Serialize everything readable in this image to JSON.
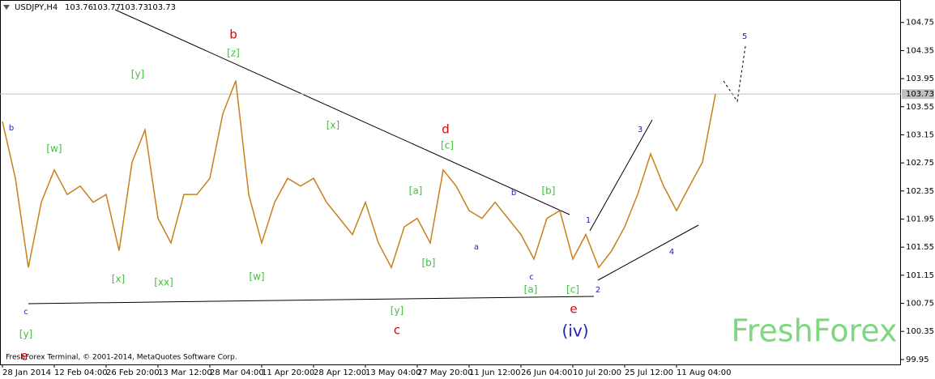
{
  "chart_data": {
    "type": "line",
    "symbol": "USDJPY,H4",
    "ohlc": [
      103.76,
      103.77,
      103.73,
      103.73
    ],
    "current_price": 103.73,
    "copyright": "FreshForex Terminal, © 2001-2014, MetaQuotes Software Corp.",
    "watermark": "FreshForex",
    "x_labels": [
      "28 Jan 2014",
      "12 Feb 04:00",
      "26 Feb 20:00",
      "13 Mar 12:00",
      "28 Mar 04:00",
      "11 Apr 20:00",
      "28 Apr 12:00",
      "13 May 04:00",
      "27 May 20:00",
      "11 Jun 12:00",
      "26 Jun 04:00",
      "10 Jul 20:00",
      "25 Jul 12:00",
      "11 Aug 04:00"
    ],
    "series": [
      {
        "name": "USDJPY",
        "color": "#c8801a",
        "values": [
          103.34,
          102.53,
          101.26,
          102.19,
          102.65,
          102.3,
          102.42,
          102.19,
          102.3,
          101.5,
          102.76,
          103.22,
          101.96,
          101.61,
          102.3,
          102.3,
          102.53,
          103.45,
          103.92,
          102.3,
          101.61,
          102.19,
          102.53,
          102.42,
          102.53,
          102.19,
          101.96,
          101.73,
          102.19,
          101.61,
          101.26,
          101.84,
          101.96,
          101.61,
          102.65,
          102.42,
          102.07,
          101.96,
          102.19,
          101.96,
          101.73,
          101.38,
          101.96,
          102.07,
          101.38,
          101.73,
          101.26,
          101.5,
          101.84,
          102.3,
          102.88,
          102.42,
          102.07,
          102.42,
          102.76,
          103.73
        ]
      }
    ],
    "ylim": [
      99.88,
      105.07
    ],
    "yticks": [
      {
        "value": 99.95,
        "label": "99.95"
      },
      {
        "value": 100.35,
        "label": "100.35"
      },
      {
        "value": 100.75,
        "label": "100.75"
      },
      {
        "value": 101.15,
        "label": "101.15"
      },
      {
        "value": 101.55,
        "label": "101.55"
      },
      {
        "value": 101.95,
        "label": "101.95"
      },
      {
        "value": 102.35,
        "label": "102.35"
      },
      {
        "value": 102.75,
        "label": "102.75"
      },
      {
        "value": 103.15,
        "label": "103.15"
      },
      {
        "value": 103.55,
        "label": "103.55"
      },
      {
        "value": 103.95,
        "label": "103.95"
      },
      {
        "value": 104.35,
        "label": "104.35"
      },
      {
        "value": 104.75,
        "label": "104.75"
      }
    ],
    "annotations": [
      {
        "text": "b",
        "color": "blue"
      },
      {
        "text": "b",
        "color": "red"
      },
      {
        "text": "[z]",
        "color": "green"
      },
      {
        "text": "[y]",
        "color": "green"
      },
      {
        "text": "[w]",
        "color": "green"
      },
      {
        "text": "[x]",
        "color": "green"
      },
      {
        "text": "d",
        "color": "red"
      },
      {
        "text": "[c]",
        "color": "green"
      },
      {
        "text": "[a]",
        "color": "green"
      },
      {
        "text": "b",
        "color": "blue"
      },
      {
        "text": "[b]",
        "color": "green"
      },
      {
        "text": "[b]",
        "color": "green"
      },
      {
        "text": "a",
        "color": "blue"
      },
      {
        "text": "c",
        "color": "blue"
      },
      {
        "text": "[a]",
        "color": "green"
      },
      {
        "text": "[c]",
        "color": "green"
      },
      {
        "text": "e",
        "color": "red"
      },
      {
        "text": "(iv)",
        "color": "blue"
      },
      {
        "text": "[y]",
        "color": "green"
      },
      {
        "text": "c",
        "color": "red"
      },
      {
        "text": "[x]",
        "color": "green"
      },
      {
        "text": "[xx]",
        "color": "green"
      },
      {
        "text": "[w]",
        "color": "green"
      },
      {
        "text": "c",
        "color": "blue"
      },
      {
        "text": "[y]",
        "color": "green"
      },
      {
        "text": "e",
        "color": "red"
      },
      {
        "text": "1",
        "color": "blue"
      },
      {
        "text": "2",
        "color": "blue"
      },
      {
        "text": "3",
        "color": "blue"
      },
      {
        "text": "4",
        "color": "blue"
      },
      {
        "text": "5",
        "color": "blue"
      }
    ]
  }
}
